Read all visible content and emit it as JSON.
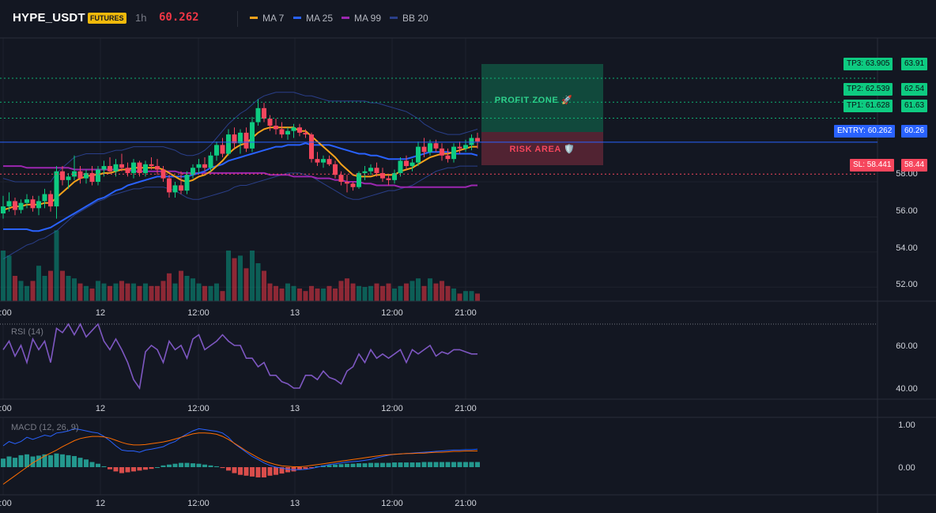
{
  "header": {
    "symbol": "HYPE_USDT",
    "badge": "FUTURES",
    "timeframe": "1h",
    "price": "60.262",
    "legend": [
      {
        "label": "MA 7",
        "color": "#f7a21b"
      },
      {
        "label": "MA 25",
        "color": "#2962ff"
      },
      {
        "label": "MA 99",
        "color": "#9c27b0"
      },
      {
        "label": "BB 20",
        "color": "#2a3f8a"
      }
    ]
  },
  "levels": {
    "tp3": {
      "tag": "TP3: 63.905",
      "price": "63.91",
      "value": 63.905
    },
    "tp2": {
      "tag": "TP2: 62.539",
      "price": "62.54",
      "value": 62.539
    },
    "tp1": {
      "tag": "TP1: 61.628",
      "price": "61.63",
      "value": 61.628
    },
    "entry": {
      "tag": "ENTRY: 60.262",
      "price": "60.26",
      "value": 60.262
    },
    "sl": {
      "tag": "SL: 58.441",
      "price": "58.44",
      "value": 58.441
    }
  },
  "zones": {
    "profit": "PROFIT ZONE 🚀",
    "risk": "RISK AREA 🛡️"
  },
  "colors": {
    "up": "#089981",
    "down": "#f23645",
    "bright_up": "#0ecb81",
    "bright_down": "#f6465d"
  },
  "price_axis": {
    "ticks": [
      "52.00",
      "54.00",
      "56.00",
      "58.00"
    ]
  },
  "time_axis": {
    "labels": [
      "2:00",
      "12",
      "12:00",
      "13",
      "12:00",
      "21:00"
    ]
  },
  "rsi": {
    "title": "RSI (14)",
    "ticks": [
      "60.00",
      "40.00"
    ]
  },
  "macd": {
    "title": "MACD (12, 26, 9)",
    "ticks": [
      "1.00",
      "0.00"
    ]
  },
  "chart_data": {
    "type": "candlestick",
    "symbol": "HYPE_USDT",
    "interval": "1h",
    "price_range": [
      51.2,
      66.2
    ],
    "candles": [
      {
        "o": 56.2,
        "h": 57.2,
        "l": 55.9,
        "c": 56.6
      },
      {
        "o": 56.6,
        "h": 57.4,
        "l": 56.3,
        "c": 56.9
      },
      {
        "o": 56.9,
        "h": 57.1,
        "l": 56.1,
        "c": 56.4
      },
      {
        "o": 56.4,
        "h": 57.0,
        "l": 56.2,
        "c": 56.8
      },
      {
        "o": 56.8,
        "h": 57.3,
        "l": 56.5,
        "c": 57.0
      },
      {
        "o": 57.0,
        "h": 57.2,
        "l": 56.3,
        "c": 56.5
      },
      {
        "o": 56.5,
        "h": 57.2,
        "l": 56.1,
        "c": 56.9
      },
      {
        "o": 56.9,
        "h": 57.6,
        "l": 56.5,
        "c": 57.3
      },
      {
        "o": 57.3,
        "h": 57.5,
        "l": 56.3,
        "c": 56.6
      },
      {
        "o": 56.6,
        "h": 58.9,
        "l": 55.9,
        "c": 58.6
      },
      {
        "o": 58.6,
        "h": 58.9,
        "l": 57.8,
        "c": 58.1
      },
      {
        "o": 58.1,
        "h": 58.5,
        "l": 57.6,
        "c": 58.3
      },
      {
        "o": 58.3,
        "h": 59.5,
        "l": 58.1,
        "c": 58.6
      },
      {
        "o": 58.6,
        "h": 58.9,
        "l": 57.9,
        "c": 58.2
      },
      {
        "o": 58.2,
        "h": 58.7,
        "l": 57.9,
        "c": 58.5
      },
      {
        "o": 58.5,
        "h": 58.9,
        "l": 57.8,
        "c": 58.0
      },
      {
        "o": 58.0,
        "h": 58.9,
        "l": 57.8,
        "c": 58.7
      },
      {
        "o": 58.7,
        "h": 59.2,
        "l": 58.3,
        "c": 58.9
      },
      {
        "o": 58.9,
        "h": 59.4,
        "l": 58.5,
        "c": 58.6
      },
      {
        "o": 58.6,
        "h": 59.3,
        "l": 58.3,
        "c": 59.0
      },
      {
        "o": 59.0,
        "h": 59.6,
        "l": 58.6,
        "c": 58.8
      },
      {
        "o": 58.8,
        "h": 59.1,
        "l": 58.3,
        "c": 58.5
      },
      {
        "o": 58.5,
        "h": 59.3,
        "l": 58.2,
        "c": 59.1
      },
      {
        "o": 59.1,
        "h": 59.2,
        "l": 58.3,
        "c": 58.5
      },
      {
        "o": 58.5,
        "h": 59.2,
        "l": 58.3,
        "c": 59.0
      },
      {
        "o": 59.0,
        "h": 59.4,
        "l": 58.7,
        "c": 58.9
      },
      {
        "o": 58.9,
        "h": 59.3,
        "l": 58.4,
        "c": 58.7
      },
      {
        "o": 58.7,
        "h": 58.9,
        "l": 58.0,
        "c": 58.2
      },
      {
        "o": 58.2,
        "h": 58.4,
        "l": 57.1,
        "c": 57.4
      },
      {
        "o": 57.4,
        "h": 58.0,
        "l": 57.1,
        "c": 57.8
      },
      {
        "o": 57.8,
        "h": 58.6,
        "l": 57.3,
        "c": 57.5
      },
      {
        "o": 57.5,
        "h": 58.6,
        "l": 57.3,
        "c": 58.4
      },
      {
        "o": 58.4,
        "h": 59.0,
        "l": 58.2,
        "c": 58.8
      },
      {
        "o": 58.8,
        "h": 59.3,
        "l": 58.5,
        "c": 59.0
      },
      {
        "o": 59.0,
        "h": 59.4,
        "l": 58.6,
        "c": 58.8
      },
      {
        "o": 58.8,
        "h": 59.7,
        "l": 58.6,
        "c": 59.5
      },
      {
        "o": 59.5,
        "h": 60.3,
        "l": 59.2,
        "c": 60.1
      },
      {
        "o": 60.1,
        "h": 60.5,
        "l": 59.4,
        "c": 59.6
      },
      {
        "o": 59.6,
        "h": 61.0,
        "l": 59.5,
        "c": 60.7
      },
      {
        "o": 60.7,
        "h": 61.1,
        "l": 59.9,
        "c": 60.2
      },
      {
        "o": 60.2,
        "h": 61.0,
        "l": 59.6,
        "c": 60.8
      },
      {
        "o": 60.8,
        "h": 61.1,
        "l": 59.7,
        "c": 59.9
      },
      {
        "o": 59.9,
        "h": 61.7,
        "l": 59.7,
        "c": 61.4
      },
      {
        "o": 61.4,
        "h": 62.7,
        "l": 61.2,
        "c": 62.2
      },
      {
        "o": 62.2,
        "h": 62.5,
        "l": 61.4,
        "c": 61.6
      },
      {
        "o": 61.6,
        "h": 61.8,
        "l": 60.9,
        "c": 61.2
      },
      {
        "o": 61.2,
        "h": 61.6,
        "l": 60.7,
        "c": 61.0
      },
      {
        "o": 61.0,
        "h": 61.4,
        "l": 60.5,
        "c": 60.7
      },
      {
        "o": 60.7,
        "h": 61.1,
        "l": 60.4,
        "c": 60.9
      },
      {
        "o": 60.9,
        "h": 61.3,
        "l": 60.5,
        "c": 61.1
      },
      {
        "o": 61.1,
        "h": 61.3,
        "l": 60.6,
        "c": 60.8
      },
      {
        "o": 60.8,
        "h": 61.0,
        "l": 60.5,
        "c": 60.7
      },
      {
        "o": 60.7,
        "h": 60.8,
        "l": 59.1,
        "c": 59.3
      },
      {
        "o": 59.3,
        "h": 59.7,
        "l": 58.9,
        "c": 59.1
      },
      {
        "o": 59.1,
        "h": 59.5,
        "l": 58.8,
        "c": 59.3
      },
      {
        "o": 59.3,
        "h": 59.5,
        "l": 58.9,
        "c": 59.0
      },
      {
        "o": 59.0,
        "h": 59.2,
        "l": 58.2,
        "c": 58.4
      },
      {
        "o": 58.4,
        "h": 58.6,
        "l": 57.8,
        "c": 58.0
      },
      {
        "o": 58.0,
        "h": 58.4,
        "l": 57.4,
        "c": 57.9
      },
      {
        "o": 57.9,
        "h": 58.0,
        "l": 57.5,
        "c": 57.7
      },
      {
        "o": 57.7,
        "h": 58.6,
        "l": 57.6,
        "c": 58.5
      },
      {
        "o": 58.5,
        "h": 58.9,
        "l": 58.1,
        "c": 58.6
      },
      {
        "o": 58.6,
        "h": 59.0,
        "l": 58.4,
        "c": 58.8
      },
      {
        "o": 58.8,
        "h": 59.1,
        "l": 58.3,
        "c": 58.5
      },
      {
        "o": 58.5,
        "h": 58.8,
        "l": 58.0,
        "c": 58.2
      },
      {
        "o": 58.2,
        "h": 58.4,
        "l": 57.8,
        "c": 58.1
      },
      {
        "o": 58.1,
        "h": 58.7,
        "l": 57.9,
        "c": 58.5
      },
      {
        "o": 58.5,
        "h": 59.4,
        "l": 58.3,
        "c": 59.2
      },
      {
        "o": 59.2,
        "h": 59.5,
        "l": 58.7,
        "c": 58.9
      },
      {
        "o": 58.9,
        "h": 59.3,
        "l": 58.6,
        "c": 59.1
      },
      {
        "o": 59.1,
        "h": 60.3,
        "l": 58.9,
        "c": 60.0
      },
      {
        "o": 60.0,
        "h": 60.5,
        "l": 59.4,
        "c": 59.7
      },
      {
        "o": 59.7,
        "h": 60.4,
        "l": 59.5,
        "c": 60.2
      },
      {
        "o": 60.2,
        "h": 60.4,
        "l": 59.7,
        "c": 59.9
      },
      {
        "o": 59.9,
        "h": 60.2,
        "l": 59.2,
        "c": 59.5
      },
      {
        "o": 59.5,
        "h": 59.9,
        "l": 59.1,
        "c": 59.3
      },
      {
        "o": 59.3,
        "h": 60.2,
        "l": 59.1,
        "c": 60.0
      },
      {
        "o": 60.0,
        "h": 60.3,
        "l": 59.6,
        "c": 59.9
      },
      {
        "o": 59.9,
        "h": 60.4,
        "l": 59.7,
        "c": 60.1
      },
      {
        "o": 60.1,
        "h": 60.7,
        "l": 59.8,
        "c": 60.5
      },
      {
        "o": 60.5,
        "h": 60.8,
        "l": 59.9,
        "c": 60.3
      }
    ],
    "ma7": [
      56.4,
      56.5,
      56.6,
      56.6,
      56.7,
      56.7,
      56.7,
      56.8,
      56.8,
      57.1,
      57.4,
      57.7,
      58.0,
      58.2,
      58.3,
      58.4,
      58.4,
      58.5,
      58.5,
      58.6,
      58.7,
      58.7,
      58.8,
      58.8,
      58.8,
      58.8,
      58.8,
      58.7,
      58.5,
      58.3,
      58.1,
      58.0,
      58.1,
      58.3,
      58.4,
      58.6,
      58.9,
      59.2,
      59.6,
      59.9,
      60.1,
      60.2,
      60.5,
      60.8,
      61.0,
      61.1,
      61.1,
      61.1,
      61.1,
      61.1,
      60.9,
      60.9,
      60.6,
      60.3,
      60.0,
      59.7,
      59.4,
      59.0,
      58.7,
      58.4,
      58.3,
      58.3,
      58.3,
      58.4,
      58.4,
      58.4,
      58.4,
      58.6,
      58.7,
      58.8,
      59.0,
      59.2,
      59.4,
      59.5,
      59.6,
      59.6,
      59.7,
      59.8,
      59.9,
      60.0,
      60.0
    ],
    "ma25": [
      55.3,
      55.3,
      55.3,
      55.3,
      55.3,
      55.2,
      55.2,
      55.3,
      55.4,
      55.6,
      55.8,
      56.0,
      56.2,
      56.4,
      56.6,
      56.8,
      57.0,
      57.1,
      57.3,
      57.5,
      57.6,
      57.8,
      57.9,
      58.0,
      58.1,
      58.2,
      58.3,
      58.3,
      58.3,
      58.3,
      58.3,
      58.3,
      58.4,
      58.5,
      58.6,
      58.8,
      58.9,
      59.0,
      59.2,
      59.3,
      59.4,
      59.5,
      59.6,
      59.7,
      59.8,
      59.9,
      60.0,
      60.0,
      60.1,
      60.1,
      60.1,
      60.2,
      60.1,
      60.1,
      60.1,
      60.1,
      60.0,
      59.9,
      59.8,
      59.7,
      59.6,
      59.6,
      59.5,
      59.5,
      59.4,
      59.3,
      59.3,
      59.3,
      59.3,
      59.4,
      59.5,
      59.6,
      59.7,
      59.7,
      59.7,
      59.7,
      59.6,
      59.6,
      59.6,
      59.6,
      59.5
    ],
    "ma99": [
      58.9,
      58.9,
      58.9,
      58.9,
      58.8,
      58.8,
      58.8,
      58.8,
      58.8,
      58.8,
      58.8,
      58.8,
      58.7,
      58.7,
      58.7,
      58.7,
      58.7,
      58.7,
      58.7,
      58.7,
      58.7,
      58.7,
      58.6,
      58.6,
      58.6,
      58.6,
      58.6,
      58.6,
      58.6,
      58.6,
      58.5,
      58.5,
      58.5,
      58.5,
      58.5,
      58.5,
      58.5,
      58.5,
      58.5,
      58.5,
      58.5,
      58.5,
      58.5,
      58.5,
      58.5,
      58.4,
      58.4,
      58.4,
      58.4,
      58.3,
      58.3,
      58.3,
      58.3,
      58.2,
      58.2,
      58.2,
      58.1,
      58.1,
      58.0,
      58.0,
      58.0,
      57.9,
      57.9,
      57.8,
      57.8,
      57.8,
      57.8,
      57.7,
      57.7,
      57.7,
      57.7,
      57.7,
      57.7,
      57.7,
      57.7,
      57.7,
      57.7,
      57.7,
      57.7,
      57.8,
      57.8
    ],
    "bb_upper": [
      58.2,
      58.1,
      58.0,
      58.0,
      58.0,
      58.0,
      58.0,
      58.0,
      58.0,
      58.5,
      58.8,
      59.1,
      59.4,
      59.5,
      59.6,
      59.6,
      59.6,
      59.6,
      59.7,
      59.8,
      59.8,
      59.9,
      60.0,
      60.0,
      60.0,
      60.0,
      60.0,
      60.0,
      59.9,
      59.8,
      59.6,
      59.5,
      59.5,
      59.6,
      59.8,
      60.1,
      60.5,
      60.9,
      61.3,
      61.6,
      61.9,
      62.1,
      62.4,
      62.7,
      62.9,
      63.0,
      63.1,
      63.1,
      63.1,
      63.1,
      63.0,
      62.9,
      62.9,
      62.8,
      62.7,
      62.6,
      62.6,
      62.6,
      62.6,
      62.6,
      62.6,
      62.6,
      62.5,
      62.5,
      62.4,
      62.3,
      62.2,
      62.1,
      62.0,
      61.8,
      61.6,
      61.3,
      61.1,
      60.9,
      60.8,
      60.7,
      60.7,
      60.7,
      60.8,
      60.9,
      61.0
    ],
    "bb_lower": [
      53.6,
      53.8,
      54.0,
      54.2,
      54.4,
      54.5,
      54.7,
      54.8,
      55.0,
      55.2,
      55.5,
      55.8,
      56.1,
      56.3,
      56.5,
      56.7,
      56.9,
      57.0,
      57.2,
      57.3,
      57.4,
      57.5,
      57.6,
      57.6,
      57.7,
      57.7,
      57.7,
      57.7,
      57.6,
      57.5,
      57.3,
      57.1,
      57.0,
      57.0,
      57.1,
      57.2,
      57.3,
      57.4,
      57.5,
      57.7,
      57.8,
      57.8,
      57.9,
      58.0,
      58.1,
      58.2,
      58.3,
      58.4,
      58.5,
      58.5,
      58.5,
      58.4,
      58.3,
      58.1,
      57.9,
      57.7,
      57.5,
      57.3,
      57.1,
      57.0,
      57.0,
      57.1,
      57.2,
      57.3,
      57.4,
      57.5,
      57.5,
      57.6,
      57.7,
      57.8,
      58.0,
      58.2,
      58.4,
      58.6,
      58.7,
      58.8,
      58.8,
      58.9,
      58.9,
      58.9,
      58.9
    ],
    "volume": [
      1.0,
      0.9,
      0.5,
      0.4,
      0.3,
      0.4,
      0.7,
      0.5,
      0.6,
      1.4,
      0.6,
      0.5,
      0.45,
      0.35,
      0.3,
      0.25,
      0.4,
      0.35,
      0.3,
      0.35,
      0.4,
      0.35,
      0.35,
      0.3,
      0.35,
      0.3,
      0.3,
      0.4,
      0.55,
      0.35,
      0.6,
      0.5,
      0.45,
      0.35,
      0.3,
      0.3,
      0.35,
      0.2,
      1.0,
      0.85,
      0.9,
      0.65,
      1.0,
      0.75,
      0.6,
      0.35,
      0.3,
      0.25,
      0.35,
      0.3,
      0.25,
      0.2,
      0.3,
      0.25,
      0.25,
      0.3,
      0.25,
      0.4,
      0.45,
      0.35,
      0.3,
      0.28,
      0.3,
      0.35,
      0.3,
      0.35,
      0.25,
      0.3,
      0.35,
      0.4,
      0.45,
      0.3,
      0.45,
      0.35,
      0.4,
      0.3,
      0.25,
      0.15,
      0.2,
      0.2,
      0.15
    ],
    "rsi": [
      58,
      62,
      55,
      60,
      52,
      63,
      58,
      62,
      52,
      68,
      66,
      70,
      65,
      70,
      64,
      67,
      70,
      62,
      58,
      63,
      58,
      52,
      44,
      40,
      57,
      60,
      58,
      52,
      62,
      58,
      60,
      54,
      63,
      65,
      58,
      60,
      62,
      65,
      62,
      60,
      60,
      54,
      54,
      50,
      52,
      46,
      46,
      43,
      42,
      40,
      40,
      46,
      46,
      44,
      48,
      45,
      44,
      42,
      48,
      50,
      56,
      52,
      58,
      54,
      56,
      54,
      56,
      58,
      52,
      58,
      56,
      58,
      60,
      55,
      57,
      56,
      58,
      58,
      57,
      56,
      56
    ],
    "macd": {
      "macd": [
        0.5,
        0.6,
        0.55,
        0.6,
        0.7,
        0.65,
        0.7,
        0.75,
        0.72,
        0.8,
        0.82,
        0.85,
        0.9,
        0.88,
        0.85,
        0.82,
        0.8,
        0.72,
        0.62,
        0.5,
        0.4,
        0.38,
        0.38,
        0.35,
        0.4,
        0.42,
        0.45,
        0.48,
        0.55,
        0.6,
        0.7,
        0.78,
        0.85,
        0.9,
        0.88,
        0.86,
        0.84,
        0.8,
        0.7,
        0.55,
        0.45,
        0.35,
        0.25,
        0.18,
        0.1,
        0.04,
        0.0,
        -0.02,
        -0.05,
        -0.06,
        -0.06,
        -0.05,
        -0.03,
        0.0,
        0.03,
        0.06,
        0.08,
        0.1,
        0.12,
        0.13,
        0.14,
        0.16,
        0.18,
        0.22,
        0.25,
        0.28,
        0.3,
        0.31,
        0.32,
        0.33,
        0.34,
        0.35,
        0.36,
        0.37,
        0.38,
        0.39,
        0.4,
        0.4,
        0.41,
        0.41,
        0.42
      ],
      "signal": [
        -0.4,
        -0.3,
        -0.2,
        -0.1,
        0.0,
        0.1,
        0.18,
        0.26,
        0.33,
        0.4,
        0.48,
        0.55,
        0.62,
        0.67,
        0.7,
        0.72,
        0.72,
        0.71,
        0.68,
        0.63,
        0.58,
        0.54,
        0.52,
        0.52,
        0.53,
        0.55,
        0.57,
        0.59,
        0.62,
        0.66,
        0.7,
        0.74,
        0.78,
        0.8,
        0.8,
        0.79,
        0.77,
        0.72,
        0.65,
        0.56,
        0.47,
        0.38,
        0.3,
        0.22,
        0.15,
        0.1,
        0.06,
        0.03,
        0.02,
        0.01,
        0.01,
        0.02,
        0.04,
        0.06,
        0.08,
        0.1,
        0.12,
        0.14,
        0.16,
        0.18,
        0.2,
        0.22,
        0.24,
        0.26,
        0.28,
        0.29,
        0.3,
        0.31,
        0.32,
        0.32,
        0.33,
        0.33,
        0.34,
        0.35,
        0.35,
        0.36,
        0.37,
        0.37,
        0.38,
        0.38,
        0.38
      ],
      "hist": [
        0.2,
        0.25,
        0.22,
        0.28,
        0.3,
        0.25,
        0.27,
        0.3,
        0.28,
        0.32,
        0.3,
        0.28,
        0.26,
        0.22,
        0.18,
        0.12,
        0.08,
        0.02,
        -0.05,
        -0.1,
        -0.14,
        -0.12,
        -0.1,
        -0.08,
        -0.06,
        -0.04,
        0.0,
        0.04,
        0.06,
        0.08,
        0.1,
        0.1,
        0.09,
        0.08,
        0.06,
        0.04,
        0.02,
        -0.02,
        -0.08,
        -0.14,
        -0.18,
        -0.2,
        -0.22,
        -0.24,
        -0.24,
        -0.2,
        -0.18,
        -0.15,
        -0.12,
        -0.1,
        -0.06,
        -0.04,
        -0.02,
        0.02,
        0.04,
        0.05,
        0.06,
        0.07,
        0.08,
        0.08,
        0.09,
        0.09,
        0.1,
        0.1,
        0.1,
        0.1,
        0.11,
        0.11,
        0.11,
        0.11,
        0.11,
        0.12,
        0.12,
        0.12,
        0.12,
        0.12,
        0.12,
        0.12,
        0.12,
        0.12,
        0.12
      ]
    }
  }
}
